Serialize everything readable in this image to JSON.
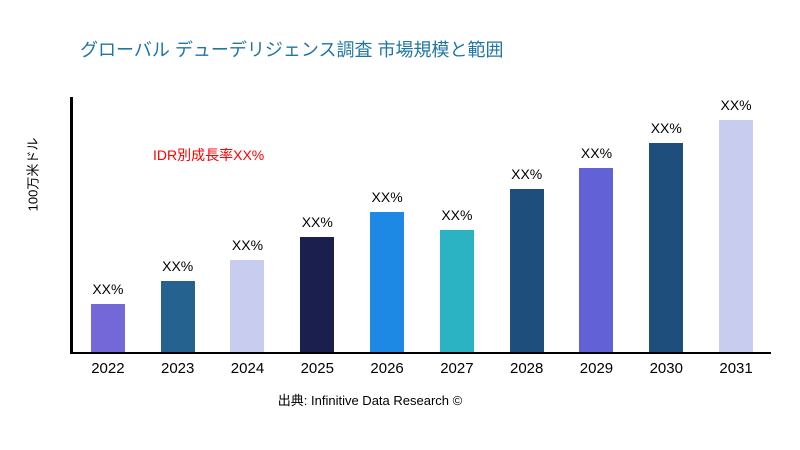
{
  "title": "グローバル デューデリジェンス調査 市場規模と範囲",
  "ylabel": "100万米ドル",
  "annotation": {
    "text": "IDR別成長率XX%",
    "color": "#FF0000"
  },
  "source": "出典: Infinitive Data Research ©",
  "colors_meta": {
    "title_color": "#2076A3",
    "axis_color": "#000000"
  },
  "chart_data": {
    "type": "bar",
    "title": "グローバル デューデリジェンス調査 市場規模と範囲",
    "xlabel": "",
    "ylabel": "100万米ドル",
    "categories": [
      "2022",
      "2023",
      "2024",
      "2025",
      "2026",
      "2027",
      "2028",
      "2029",
      "2030",
      "2031"
    ],
    "values": [
      19,
      28,
      36,
      45,
      55,
      48,
      64,
      72,
      82,
      91
    ],
    "value_labels": [
      "XX%",
      "XX%",
      "XX%",
      "XX%",
      "XX%",
      "XX%",
      "XX%",
      "XX%",
      "XX%",
      "XX%"
    ],
    "colors": [
      "#7468D8",
      "#25628F",
      "#C8CCEF",
      "#1B1F4D",
      "#1E88E5",
      "#2BB3C4",
      "#1E4F7C",
      "#6261D6",
      "#1E4F7C",
      "#C8CCEF"
    ],
    "ylim": [
      0,
      100
    ],
    "grid": false,
    "legend": "none",
    "values_note": "Bar values shown only as XX% placeholders in source image; numeric values are relative heights (percent of plot height) estimated from pixels."
  }
}
